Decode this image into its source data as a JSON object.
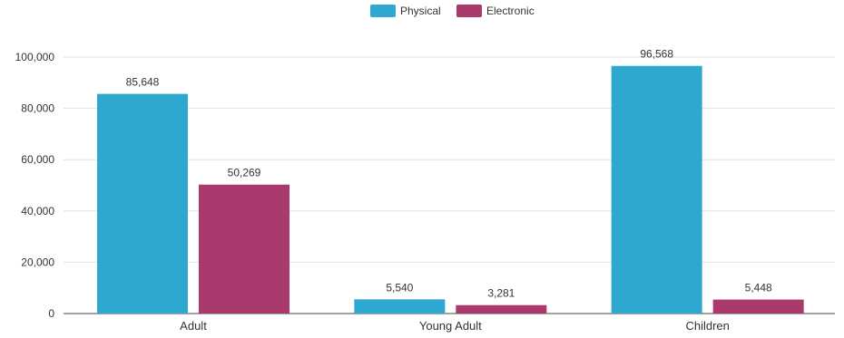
{
  "chart_data": {
    "type": "bar",
    "categories": [
      "Adult",
      "Young Adult",
      "Children"
    ],
    "series": [
      {
        "name": "Physical",
        "color": "#2fa8d0",
        "values": [
          85648,
          5540,
          96568
        ],
        "labels": [
          "85,648",
          "5,540",
          "96,568"
        ]
      },
      {
        "name": "Electronic",
        "color": "#aa3a6e",
        "values": [
          50269,
          3281,
          5448
        ],
        "labels": [
          "50,269",
          "3,281",
          "5,448"
        ]
      }
    ],
    "ylim": [
      0,
      100000
    ],
    "yticks": [
      0,
      20000,
      40000,
      60000,
      80000,
      100000
    ],
    "ytick_labels": [
      "0",
      "20,000",
      "40,000",
      "60,000",
      "80,000",
      "100,000"
    ],
    "legend_position": "top-center",
    "grid": true
  }
}
